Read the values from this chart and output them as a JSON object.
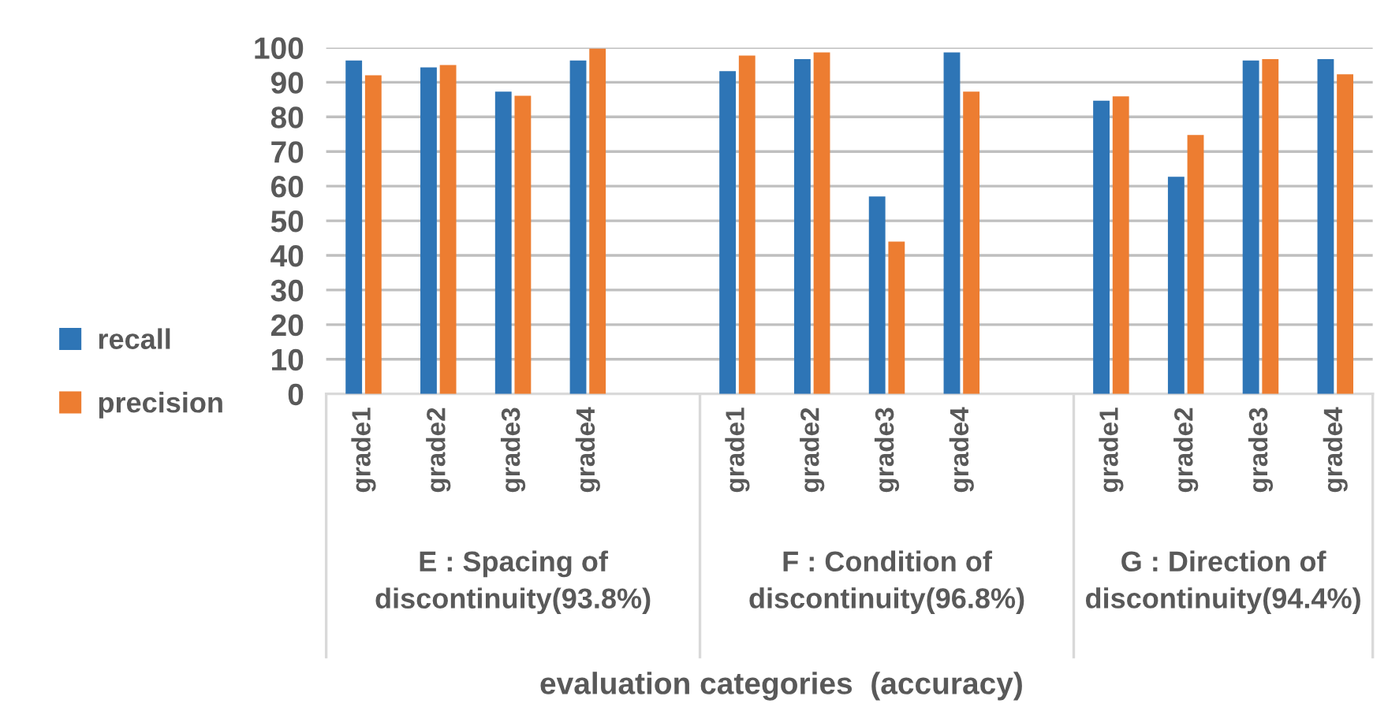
{
  "chart_data": {
    "type": "bar",
    "categories": [
      "grade1",
      "grade2",
      "grade3",
      "grade4",
      null,
      "grade1",
      "grade2",
      "grade3",
      "grade4",
      null,
      "grade1",
      "grade2",
      "grade3",
      "grade4"
    ],
    "series": [
      {
        "name": "recall",
        "color": "#2e75b6",
        "values": [
          96.3,
          94.3,
          87.3,
          96.3,
          null,
          93.2,
          96.7,
          57.0,
          98.6,
          null,
          84.7,
          62.7,
          96.3,
          96.7
        ]
      },
      {
        "name": "precision",
        "color": "#ed7d31",
        "values": [
          92.0,
          95.0,
          86.1,
          99.7,
          null,
          97.7,
          98.6,
          44.0,
          87.3,
          null,
          85.9,
          74.8,
          96.7,
          92.3
        ]
      }
    ],
    "annotations": [
      "E : Spacing of\ndiscontinuity(93.8%)",
      "F : Condition of\ndiscontinuity(96.8%)",
      "G : Direction of\ndiscontinuity(94.4%)",
      "evaluation categories  (accuracy)"
    ],
    "ylim": [
      0,
      100
    ],
    "yticks": [
      0,
      10,
      20,
      30,
      40,
      50,
      60,
      70,
      80,
      90,
      100
    ],
    "grid": "y",
    "legend": "left"
  }
}
